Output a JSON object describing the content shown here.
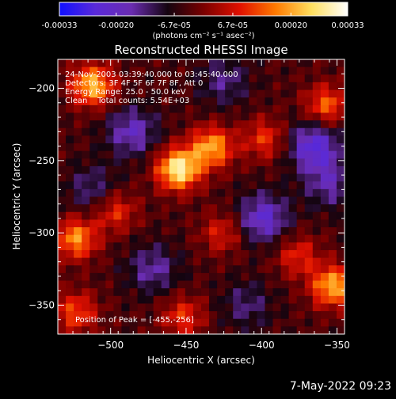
{
  "chart_data": {
    "type": "heatmap",
    "title": "Reconstructed RHESSI Image",
    "xlabel": "Heliocentric X (arcsec)",
    "ylabel": "Heliocentric Y (arcsec)",
    "xlim": [
      -535,
      -345
    ],
    "ylim": [
      -370,
      -180
    ],
    "x_ticks": [
      -500,
      -450,
      -400,
      -350
    ],
    "y_ticks": [
      -200,
      -250,
      -300,
      -350
    ],
    "x_tick_labels": [
      "−500",
      "−450",
      "−400",
      "−350"
    ],
    "y_tick_labels": [
      "−200",
      "−250",
      "−300",
      "−350"
    ],
    "info_lines": [
      "24-Nov-2003 03:39:40.000 to 03:45:40.000",
      "Detectors: 3F 4F 5F 6F 7F 8F, Att 0",
      "Energy Range: 25.0 - 50.0 keV",
      "Clean    Total counts: 5.54E+03"
    ],
    "peak_label": "Position of Peak = [-455,-256]",
    "peak": [
      -455,
      -256
    ],
    "colorbar": {
      "range": [
        -0.00033,
        0.00033
      ],
      "tick_labels": [
        "-0.00033",
        "-0.00020",
        "-6.7e-05",
        "6.7e-05",
        "0.00020",
        "0.00033"
      ],
      "unit_label": "(photons cm⁻² s⁻¹ asec⁻²)",
      "colors": [
        "#1010ff",
        "#5a2ad8",
        "#6a2cb0",
        "#140410",
        "#7a0000",
        "#e01000",
        "#ff7a00",
        "#ffe060",
        "#ffffff"
      ]
    },
    "sources": [
      {
        "x": -455,
        "y": -256,
        "value": 0.00033
      },
      {
        "x": -433,
        "y": -241,
        "value": 0.00024
      },
      {
        "x": -512,
        "y": -198,
        "value": 0.00026
      },
      {
        "x": -357,
        "y": -212,
        "value": 0.00018
      },
      {
        "x": -398,
        "y": -235,
        "value": 0.00014
      },
      {
        "x": -497,
        "y": -285,
        "value": 0.00014
      },
      {
        "x": -523,
        "y": -304,
        "value": 0.00022
      },
      {
        "x": -523,
        "y": -355,
        "value": 0.00016
      },
      {
        "x": -426,
        "y": -300,
        "value": 0.00012
      },
      {
        "x": -452,
        "y": -358,
        "value": 0.00014
      },
      {
        "x": -376,
        "y": -316,
        "value": 0.00013
      },
      {
        "x": -353,
        "y": -337,
        "value": 0.00025
      },
      {
        "x": -486,
        "y": -230,
        "value": -0.00015
      },
      {
        "x": -399,
        "y": -290,
        "value": -0.00018
      },
      {
        "x": -355,
        "y": -266,
        "value": -0.00012
      },
      {
        "x": -365,
        "y": -240,
        "value": -0.0002
      },
      {
        "x": -512,
        "y": -270,
        "value": -0.0001
      },
      {
        "x": -472,
        "y": -325,
        "value": -0.00012
      },
      {
        "x": -425,
        "y": -195,
        "value": -0.0001
      },
      {
        "x": -410,
        "y": -350,
        "value": -9e-05
      }
    ]
  },
  "timestamp": "7-May-2022 09:23"
}
